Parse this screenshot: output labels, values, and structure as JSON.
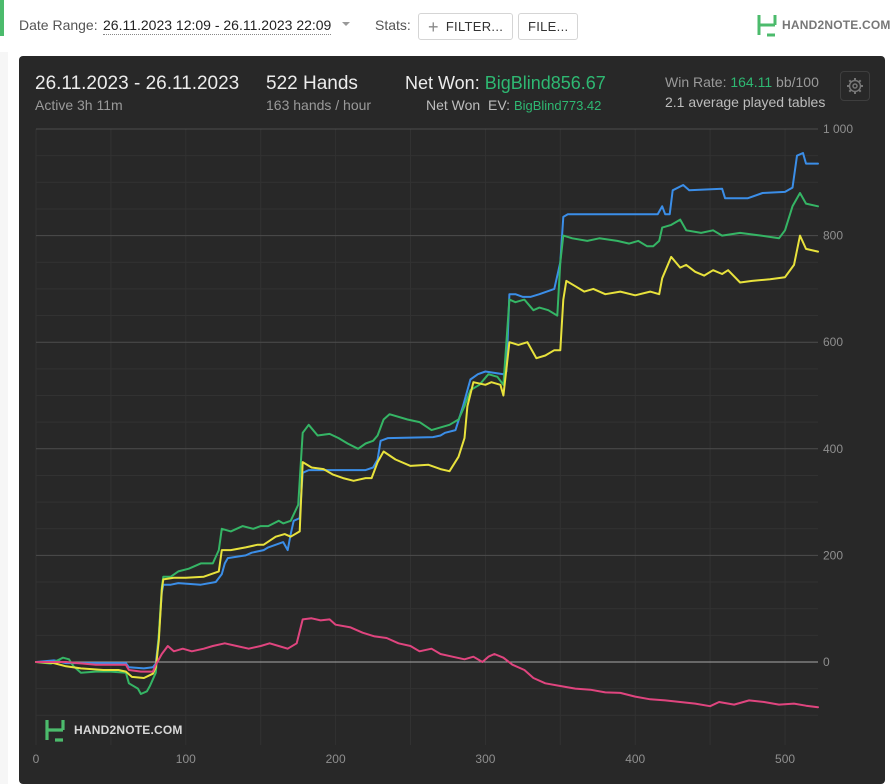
{
  "topbar": {
    "date_range_label": "Date Range:",
    "date_range_value": "26.11.2023 12:09 - 26.11.2023 22:09",
    "stats_label": "Stats:",
    "filter_button": "FILTER...",
    "file_button": "FILE...",
    "brand": "HAND2NOTE.COM",
    "brand_color": "#4cbb6c"
  },
  "summary": {
    "date": "26.11.2023 - 26.11.2023",
    "active": "Active 3h 11m",
    "hands": "522 Hands",
    "hands_per_hour": "163 hands / hour",
    "net_won_label": "Net Won:",
    "net_won_value": "BigBlind856.67",
    "net_won_ev_label": "Net Won  EV:",
    "net_won_ev_value": "BigBlind773.42",
    "win_rate_label": "Win Rate:",
    "win_rate_value": "164.11",
    "win_rate_unit": "bb/100",
    "tables": "2.1 average played tables",
    "settings_icon": "gear-icon"
  },
  "watermark": "HAND2NOTE.COM",
  "chart_data": {
    "type": "line",
    "xlabel": "",
    "ylabel": "",
    "xlim": [
      0,
      522
    ],
    "ylim": [
      -150,
      1000
    ],
    "x_ticks": [
      0,
      100,
      200,
      300,
      400,
      500
    ],
    "x_tick_labels": [
      "0",
      "100",
      "200",
      "300",
      "400",
      "500"
    ],
    "y_ticks": [
      0,
      200,
      400,
      600,
      800,
      1000
    ],
    "y_tick_labels": [
      "0",
      "200",
      "400",
      "600",
      "800",
      "1 000"
    ],
    "grid": true,
    "series": [
      {
        "color": "#3b8ee8",
        "points": [
          [
            0,
            0
          ],
          [
            12,
            3
          ],
          [
            20,
            -2
          ],
          [
            60,
            -2
          ],
          [
            62,
            -10
          ],
          [
            72,
            -12
          ],
          [
            78,
            -10
          ],
          [
            80,
            -3
          ],
          [
            82,
            50
          ],
          [
            84,
            130
          ],
          [
            85,
            145
          ],
          [
            90,
            145
          ],
          [
            95,
            148
          ],
          [
            110,
            145
          ],
          [
            120,
            150
          ],
          [
            124,
            165
          ],
          [
            126,
            185
          ],
          [
            128,
            195
          ],
          [
            135,
            198
          ],
          [
            140,
            200
          ],
          [
            144,
            205
          ],
          [
            152,
            210
          ],
          [
            155,
            215
          ],
          [
            165,
            225
          ],
          [
            168,
            210
          ],
          [
            170,
            240
          ],
          [
            172,
            265
          ],
          [
            176,
            270
          ],
          [
            178,
            355
          ],
          [
            182,
            360
          ],
          [
            205,
            360
          ],
          [
            220,
            360
          ],
          [
            225,
            365
          ],
          [
            228,
            380
          ],
          [
            230,
            415
          ],
          [
            235,
            420
          ],
          [
            265,
            422
          ],
          [
            270,
            425
          ],
          [
            273,
            430
          ],
          [
            280,
            435
          ],
          [
            285,
            480
          ],
          [
            290,
            530
          ],
          [
            295,
            540
          ],
          [
            300,
            545
          ],
          [
            312,
            540
          ],
          [
            314,
            545
          ],
          [
            316,
            690
          ],
          [
            320,
            690
          ],
          [
            325,
            685
          ],
          [
            330,
            685
          ],
          [
            336,
            690
          ],
          [
            346,
            700
          ],
          [
            350,
            750
          ],
          [
            352,
            835
          ],
          [
            355,
            840
          ],
          [
            395,
            840
          ],
          [
            415,
            840
          ],
          [
            418,
            855
          ],
          [
            420,
            840
          ],
          [
            423,
            840
          ],
          [
            425,
            885
          ],
          [
            432,
            895
          ],
          [
            436,
            885
          ],
          [
            458,
            888
          ],
          [
            460,
            870
          ],
          [
            475,
            870
          ],
          [
            485,
            880
          ],
          [
            500,
            882
          ],
          [
            505,
            890
          ],
          [
            508,
            950
          ],
          [
            512,
            955
          ],
          [
            514,
            935
          ],
          [
            522,
            935
          ]
        ]
      },
      {
        "color": "#35b565",
        "points": [
          [
            0,
            0
          ],
          [
            10,
            -3
          ],
          [
            18,
            8
          ],
          [
            22,
            5
          ],
          [
            25,
            -8
          ],
          [
            30,
            -20
          ],
          [
            40,
            -18
          ],
          [
            50,
            -18
          ],
          [
            60,
            -20
          ],
          [
            62,
            -40
          ],
          [
            68,
            -50
          ],
          [
            70,
            -60
          ],
          [
            74,
            -55
          ],
          [
            76,
            -45
          ],
          [
            80,
            -20
          ],
          [
            82,
            50
          ],
          [
            84,
            140
          ],
          [
            85,
            160
          ],
          [
            90,
            160
          ],
          [
            95,
            170
          ],
          [
            102,
            175
          ],
          [
            110,
            185
          ],
          [
            118,
            185
          ],
          [
            122,
            210
          ],
          [
            124,
            250
          ],
          [
            130,
            245
          ],
          [
            138,
            255
          ],
          [
            145,
            250
          ],
          [
            150,
            255
          ],
          [
            155,
            255
          ],
          [
            162,
            265
          ],
          [
            165,
            260
          ],
          [
            170,
            265
          ],
          [
            175,
            295
          ],
          [
            178,
            430
          ],
          [
            182,
            445
          ],
          [
            188,
            425
          ],
          [
            196,
            428
          ],
          [
            202,
            420
          ],
          [
            208,
            410
          ],
          [
            215,
            400
          ],
          [
            220,
            410
          ],
          [
            225,
            415
          ],
          [
            228,
            425
          ],
          [
            232,
            455
          ],
          [
            236,
            465
          ],
          [
            248,
            455
          ],
          [
            256,
            450
          ],
          [
            264,
            435
          ],
          [
            276,
            445
          ],
          [
            282,
            455
          ],
          [
            286,
            480
          ],
          [
            290,
            510
          ],
          [
            296,
            520
          ],
          [
            302,
            540
          ],
          [
            308,
            535
          ],
          [
            312,
            520
          ],
          [
            316,
            680
          ],
          [
            320,
            675
          ],
          [
            326,
            680
          ],
          [
            332,
            660
          ],
          [
            336,
            665
          ],
          [
            342,
            660
          ],
          [
            348,
            650
          ],
          [
            350,
            750
          ],
          [
            352,
            800
          ],
          [
            358,
            795
          ],
          [
            368,
            790
          ],
          [
            376,
            795
          ],
          [
            388,
            790
          ],
          [
            396,
            785
          ],
          [
            402,
            790
          ],
          [
            408,
            780
          ],
          [
            412,
            780
          ],
          [
            416,
            790
          ],
          [
            418,
            815
          ],
          [
            424,
            820
          ],
          [
            430,
            830
          ],
          [
            434,
            810
          ],
          [
            444,
            805
          ],
          [
            452,
            810
          ],
          [
            458,
            800
          ],
          [
            470,
            805
          ],
          [
            484,
            800
          ],
          [
            496,
            795
          ],
          [
            500,
            810
          ],
          [
            505,
            855
          ],
          [
            510,
            880
          ],
          [
            514,
            860
          ],
          [
            522,
            855
          ]
        ]
      },
      {
        "color": "#e8e23c",
        "points": [
          [
            0,
            0
          ],
          [
            12,
            -2
          ],
          [
            20,
            -8
          ],
          [
            30,
            -12
          ],
          [
            45,
            -15
          ],
          [
            55,
            -15
          ],
          [
            60,
            -18
          ],
          [
            64,
            -28
          ],
          [
            72,
            -30
          ],
          [
            78,
            -22
          ],
          [
            80,
            -10
          ],
          [
            82,
            40
          ],
          [
            84,
            135
          ],
          [
            85,
            155
          ],
          [
            92,
            158
          ],
          [
            100,
            158
          ],
          [
            112,
            160
          ],
          [
            122,
            170
          ],
          [
            124,
            210
          ],
          [
            130,
            210
          ],
          [
            140,
            215
          ],
          [
            148,
            220
          ],
          [
            152,
            220
          ],
          [
            160,
            235
          ],
          [
            166,
            240
          ],
          [
            170,
            235
          ],
          [
            176,
            245
          ],
          [
            178,
            375
          ],
          [
            184,
            365
          ],
          [
            192,
            362
          ],
          [
            198,
            352
          ],
          [
            205,
            345
          ],
          [
            212,
            340
          ],
          [
            220,
            345
          ],
          [
            224,
            345
          ],
          [
            228,
            375
          ],
          [
            232,
            395
          ],
          [
            240,
            380
          ],
          [
            250,
            368
          ],
          [
            262,
            370
          ],
          [
            270,
            362
          ],
          [
            276,
            358
          ],
          [
            282,
            385
          ],
          [
            286,
            420
          ],
          [
            288,
            480
          ],
          [
            292,
            525
          ],
          [
            300,
            520
          ],
          [
            304,
            525
          ],
          [
            310,
            520
          ],
          [
            312,
            500
          ],
          [
            316,
            600
          ],
          [
            322,
            595
          ],
          [
            328,
            600
          ],
          [
            334,
            570
          ],
          [
            340,
            575
          ],
          [
            346,
            585
          ],
          [
            350,
            585
          ],
          [
            352,
            680
          ],
          [
            354,
            715
          ],
          [
            360,
            705
          ],
          [
            366,
            695
          ],
          [
            372,
            700
          ],
          [
            380,
            690
          ],
          [
            390,
            695
          ],
          [
            400,
            688
          ],
          [
            410,
            695
          ],
          [
            416,
            690
          ],
          [
            418,
            720
          ],
          [
            424,
            760
          ],
          [
            430,
            740
          ],
          [
            434,
            745
          ],
          [
            440,
            732
          ],
          [
            446,
            725
          ],
          [
            452,
            735
          ],
          [
            458,
            728
          ],
          [
            462,
            735
          ],
          [
            470,
            712
          ],
          [
            478,
            715
          ],
          [
            490,
            718
          ],
          [
            500,
            722
          ],
          [
            506,
            745
          ],
          [
            510,
            800
          ],
          [
            514,
            775
          ],
          [
            522,
            770
          ]
        ]
      },
      {
        "color": "#e0457f",
        "points": [
          [
            0,
            0
          ],
          [
            20,
            0
          ],
          [
            40,
            -5
          ],
          [
            60,
            -5
          ],
          [
            62,
            -15
          ],
          [
            70,
            -18
          ],
          [
            78,
            -18
          ],
          [
            80,
            -5
          ],
          [
            84,
            15
          ],
          [
            88,
            30
          ],
          [
            92,
            20
          ],
          [
            98,
            25
          ],
          [
            104,
            20
          ],
          [
            112,
            25
          ],
          [
            118,
            30
          ],
          [
            126,
            35
          ],
          [
            134,
            30
          ],
          [
            142,
            25
          ],
          [
            150,
            30
          ],
          [
            156,
            35
          ],
          [
            162,
            30
          ],
          [
            168,
            25
          ],
          [
            174,
            35
          ],
          [
            178,
            80
          ],
          [
            184,
            82
          ],
          [
            190,
            78
          ],
          [
            196,
            80
          ],
          [
            200,
            70
          ],
          [
            210,
            65
          ],
          [
            218,
            55
          ],
          [
            226,
            48
          ],
          [
            234,
            45
          ],
          [
            242,
            35
          ],
          [
            250,
            30
          ],
          [
            256,
            20
          ],
          [
            264,
            25
          ],
          [
            270,
            15
          ],
          [
            278,
            10
          ],
          [
            286,
            5
          ],
          [
            292,
            10
          ],
          [
            298,
            0
          ],
          [
            302,
            10
          ],
          [
            306,
            15
          ],
          [
            312,
            8
          ],
          [
            318,
            -5
          ],
          [
            326,
            -15
          ],
          [
            332,
            -30
          ],
          [
            340,
            -40
          ],
          [
            350,
            -45
          ],
          [
            360,
            -50
          ],
          [
            370,
            -52
          ],
          [
            380,
            -57
          ],
          [
            390,
            -58
          ],
          [
            400,
            -65
          ],
          [
            410,
            -70
          ],
          [
            420,
            -72
          ],
          [
            430,
            -75
          ],
          [
            440,
            -78
          ],
          [
            450,
            -83
          ],
          [
            456,
            -75
          ],
          [
            466,
            -80
          ],
          [
            476,
            -72
          ],
          [
            486,
            -75
          ],
          [
            496,
            -80
          ],
          [
            506,
            -78
          ],
          [
            514,
            -82
          ],
          [
            522,
            -85
          ]
        ]
      }
    ]
  }
}
